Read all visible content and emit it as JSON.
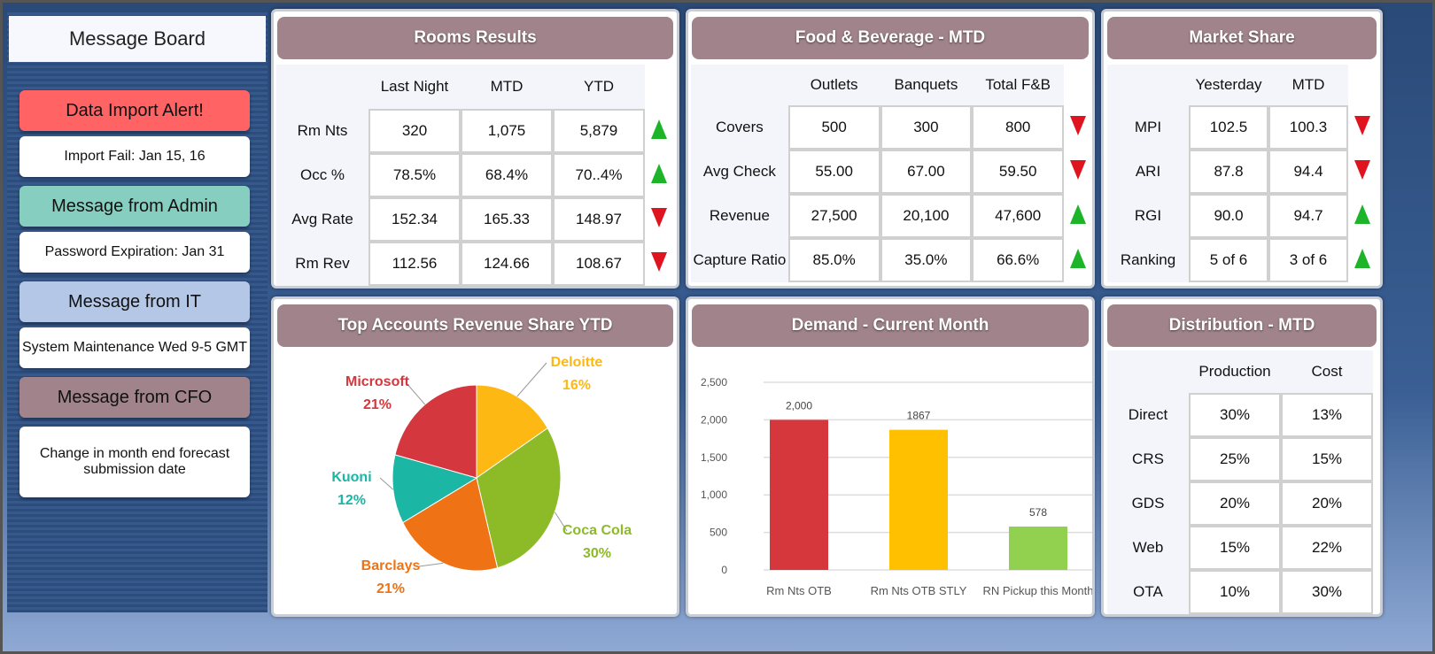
{
  "message_board": {
    "title": "Message Board",
    "items": [
      {
        "header": "Data Import Alert!",
        "header_color": "#ff6363",
        "body": "Import Fail: Jan 15, 16"
      },
      {
        "header": "Message from Admin",
        "header_color": "#86cfc0",
        "body": "Password Expiration: Jan 31"
      },
      {
        "header": "Message from IT",
        "header_color": "#b4c7e7",
        "body": "System Maintenance Wed 9-5 GMT"
      },
      {
        "header": "Message from CFO",
        "header_color": "#a0838b",
        "body": "Change in month end forecast submission date"
      }
    ]
  },
  "rooms": {
    "title": "Rooms Results",
    "columns": [
      "Last Night",
      "MTD",
      "YTD"
    ],
    "rows": [
      {
        "label": "Rm Nts",
        "values": [
          "320",
          "1,075",
          "5,879"
        ],
        "trend": "up"
      },
      {
        "label": "Occ %",
        "values": [
          "78.5%",
          "68.4%",
          "70..4%"
        ],
        "trend": "up"
      },
      {
        "label": "Avg Rate",
        "values": [
          "152.34",
          "165.33",
          "148.97"
        ],
        "trend": "down"
      },
      {
        "label": "Rm Rev",
        "values": [
          "112.56",
          "124.66",
          "108.67"
        ],
        "trend": "down"
      }
    ]
  },
  "fnb": {
    "title": "Food & Beverage - MTD",
    "columns": [
      "Outlets",
      "Banquets",
      "Total F&B"
    ],
    "rows": [
      {
        "label": "Covers",
        "values": [
          "500",
          "300",
          "800"
        ],
        "trend": "down"
      },
      {
        "label": "Avg Check",
        "values": [
          "55.00",
          "67.00",
          "59.50"
        ],
        "trend": "down"
      },
      {
        "label": "Revenue",
        "values": [
          "27,500",
          "20,100",
          "47,600"
        ],
        "trend": "up"
      },
      {
        "label": "Capture Ratio",
        "values": [
          "85.0%",
          "35.0%",
          "66.6%"
        ],
        "trend": "up"
      }
    ]
  },
  "market": {
    "title": "Market Share",
    "columns": [
      "Yesterday",
      "MTD"
    ],
    "rows": [
      {
        "label": "MPI",
        "values": [
          "102.5",
          "100.3"
        ],
        "trend": "down"
      },
      {
        "label": "ARI",
        "values": [
          "87.8",
          "94.4"
        ],
        "trend": "down"
      },
      {
        "label": "RGI",
        "values": [
          "90.0",
          "94.7"
        ],
        "trend": "up"
      },
      {
        "label": "Ranking",
        "values": [
          "5 of 6",
          "3 of 6"
        ],
        "trend": "up"
      }
    ]
  },
  "distribution": {
    "title": "Distribution - MTD",
    "columns": [
      "Production",
      "Cost"
    ],
    "rows": [
      {
        "label": "Direct",
        "values": [
          "30%",
          "13%"
        ]
      },
      {
        "label": "CRS",
        "values": [
          "25%",
          "15%"
        ]
      },
      {
        "label": "GDS",
        "values": [
          "20%",
          "20%"
        ]
      },
      {
        "label": "Web",
        "values": [
          "15%",
          "22%"
        ]
      },
      {
        "label": "OTA",
        "values": [
          "10%",
          "30%"
        ]
      }
    ]
  },
  "chart_data": [
    {
      "type": "pie",
      "title": "Top Accounts Revenue Share YTD",
      "slices": [
        {
          "name": "Deloitte",
          "value": 16,
          "label": "16%",
          "color": "#fdb813"
        },
        {
          "name": "Coca Cola",
          "value": 30,
          "label": "30%",
          "color": "#8cbb27"
        },
        {
          "name": "Barclays",
          "value": 21,
          "label": "21%",
          "color": "#ef7314"
        },
        {
          "name": "Kuoni",
          "value": 12,
          "label": "12%",
          "color": "#1bb6a4"
        },
        {
          "name": "Microsoft",
          "value": 21,
          "label": "21%",
          "color": "#d4373d"
        }
      ]
    },
    {
      "type": "bar",
      "title": "Demand - Current Month",
      "categories": [
        "Rm Nts OTB",
        "Rm Nts OTB STLY",
        "RN Pickup this Month"
      ],
      "values": [
        2000,
        1867,
        578
      ],
      "data_labels": [
        "2,000",
        "1867",
        "578"
      ],
      "colors": [
        "#d5373d",
        "#ffc000",
        "#92d050"
      ],
      "ylim": [
        0,
        2500
      ],
      "yticks": [
        "0",
        "500",
        "1,000",
        "1,500",
        "2,000",
        "2,500"
      ],
      "grid": true
    }
  ]
}
